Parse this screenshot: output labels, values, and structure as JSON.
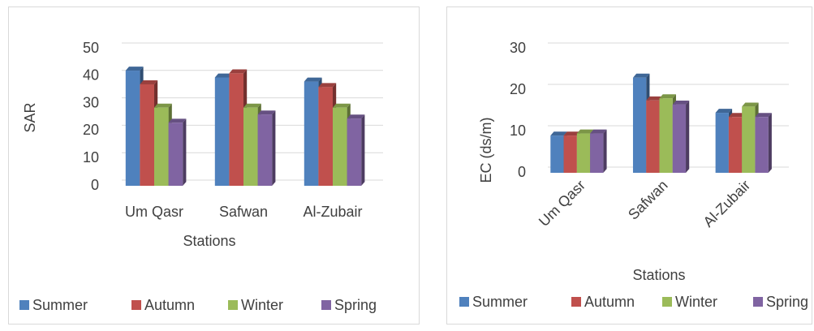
{
  "chart_data": [
    {
      "type": "bar3d",
      "y_label": "SAR",
      "x_label": "Stations",
      "categories": [
        "Um Qasr",
        "Safwan",
        "Al-Zubair"
      ],
      "series": [
        {
          "name": "Summer",
          "color": "#4f81bd",
          "values": [
            42,
            39.5,
            38
          ]
        },
        {
          "name": "Autumn",
          "color": "#c0504d",
          "values": [
            37,
            41,
            36
          ]
        },
        {
          "name": "Winter",
          "color": "#9bbb59",
          "values": [
            28.5,
            28.5,
            28.5
          ]
        },
        {
          "name": "Spring",
          "color": "#8064a2",
          "values": [
            23,
            26,
            24.5
          ]
        }
      ],
      "ylim": [
        0,
        50
      ],
      "yticks": [
        0,
        10,
        20,
        30,
        40,
        50
      ],
      "grid": true,
      "legend": "bottom"
    },
    {
      "type": "bar3d",
      "y_label": "EC (ds/m)",
      "x_label": "Stations",
      "categories": [
        "Um Qasr",
        "Safwan",
        "Al-Zubair"
      ],
      "series": [
        {
          "name": "Summer",
          "color": "#4f81bd",
          "values": [
            9,
            23,
            14.5
          ]
        },
        {
          "name": "Autumn",
          "color": "#c0504d",
          "values": [
            9,
            17.5,
            13.5
          ]
        },
        {
          "name": "Winter",
          "color": "#9bbb59",
          "values": [
            9.5,
            18,
            16
          ]
        },
        {
          "name": "Spring",
          "color": "#8064a2",
          "values": [
            9.5,
            16.5,
            13.5
          ]
        }
      ],
      "ylim": [
        0,
        30
      ],
      "yticks": [
        0,
        10,
        20,
        30
      ],
      "grid": true,
      "legend": "bottom",
      "rotate_x_labels": true
    }
  ]
}
